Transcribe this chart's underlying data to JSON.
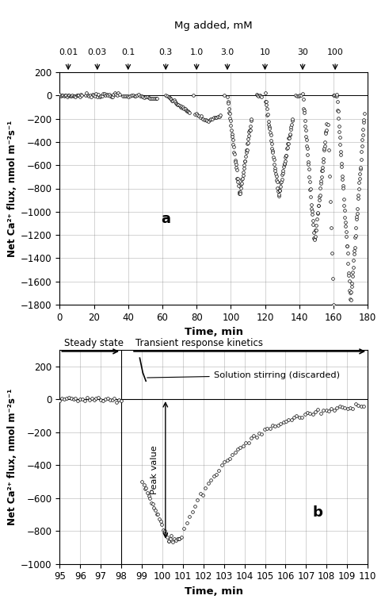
{
  "panel_a": {
    "title_top": "Mg added, mM",
    "mg_labels": [
      "0.01",
      "0.03",
      "0.1",
      "0.3",
      "1.0",
      "3.0",
      "10",
      "30",
      "100"
    ],
    "mg_times": [
      5,
      22,
      40,
      62,
      80,
      98,
      120,
      142,
      161
    ],
    "xlabel": "Time, min",
    "ylabel": "Net Ca²⁺ flux, nmol m⁻²s⁻¹",
    "xlim": [
      0,
      180
    ],
    "ylim": [
      -1800,
      200
    ],
    "yticks": [
      200,
      0,
      -200,
      -400,
      -600,
      -800,
      -1000,
      -1200,
      -1400,
      -1600,
      -1800
    ],
    "xticks": [
      0,
      20,
      40,
      60,
      80,
      100,
      120,
      140,
      160,
      180
    ],
    "label": "a"
  },
  "panel_b": {
    "xlabel": "Time, min",
    "ylabel": "Net Ca²⁺ flux, nmol m⁻²s⁻¹",
    "xlim": [
      95,
      110
    ],
    "ylim": [
      -1000,
      300
    ],
    "yticks": [
      200,
      0,
      -200,
      -400,
      -600,
      -800,
      -1000
    ],
    "xticks": [
      95,
      96,
      97,
      98,
      99,
      100,
      101,
      102,
      103,
      104,
      105,
      106,
      107,
      108,
      109,
      110
    ],
    "label": "b",
    "steady_state_label": "Steady state",
    "transient_label": "Transient response kinetics",
    "stirring_label": "Solution stirring (discarded)",
    "peak_label": "Peak value"
  }
}
